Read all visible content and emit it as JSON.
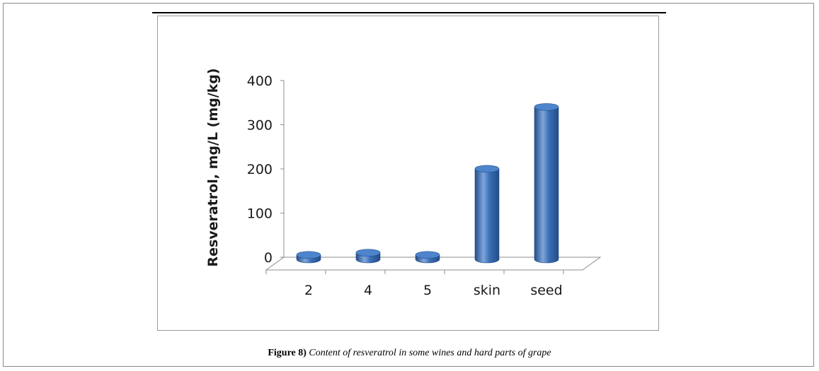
{
  "figure": {
    "label": "Figure 8)",
    "caption": " Content of resveratrol in some wines and hard parts of grape"
  },
  "colors": {
    "bar_side": "#3b6fb6",
    "bar_shadow": "#244c86",
    "bar_highlight": "#7fa6dc",
    "bar_top": "#4d84cc",
    "floor": "#ffffff",
    "axis": "#8c8c8c"
  },
  "chart_data": {
    "type": "bar",
    "style": "3d-cylinder",
    "categories": [
      "2",
      "4",
      "5",
      "skin",
      "seed"
    ],
    "values": [
      10,
      15,
      10,
      205,
      345
    ],
    "ylabel": "Resveratrol, mg/L (mg/kg)",
    "xlabel": "",
    "ylim": [
      0,
      400
    ],
    "yticks": [
      0,
      100,
      200,
      300,
      400
    ],
    "grid": false,
    "legend": "none"
  }
}
